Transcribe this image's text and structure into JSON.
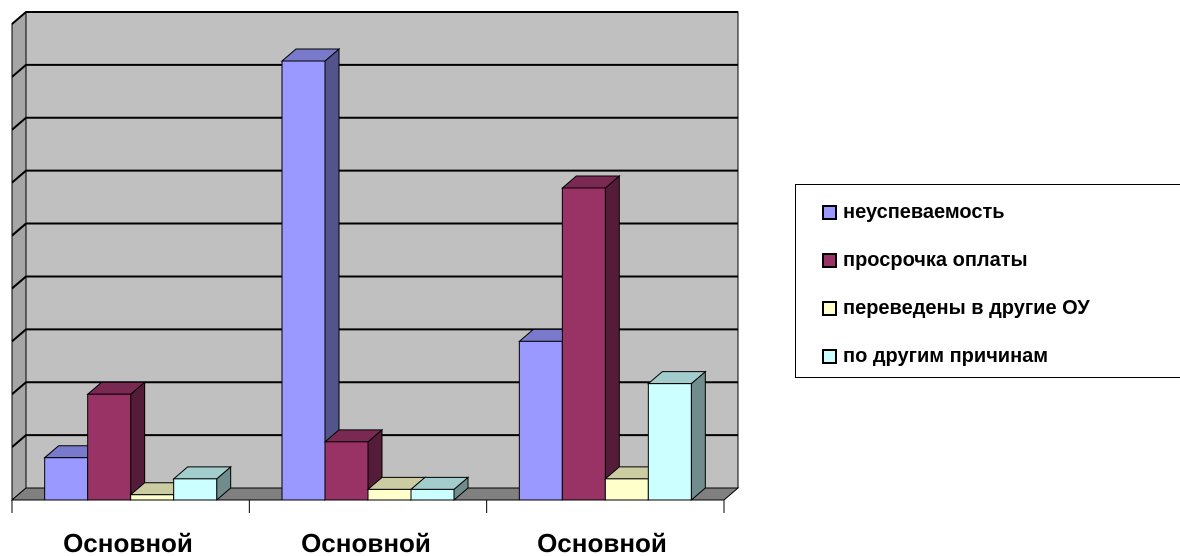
{
  "chart_data": {
    "type": "bar",
    "categories": [
      "Основной",
      "Основной",
      "Основной"
    ],
    "series": [
      {
        "name": "неуспеваемость",
        "values": [
          0.8,
          8.3,
          3.0
        ],
        "color": "#9999ff"
      },
      {
        "name": "просрочка оплаты",
        "values": [
          2.0,
          1.1,
          5.9
        ],
        "color": "#993366"
      },
      {
        "name": "переведены в другие ОУ",
        "values": [
          0.1,
          0.2,
          0.4
        ],
        "color": "#ffffcc"
      },
      {
        "name": "по другим причинам",
        "values": [
          0.4,
          0.2,
          2.2
        ],
        "color": "#ccffff"
      }
    ],
    "ylim": [
      0,
      9
    ],
    "grid": true,
    "legend": "right",
    "style": "3d-clustered-column"
  },
  "legend": {
    "items": [
      {
        "label": "неуспеваемость"
      },
      {
        "label": "просрочка оплаты"
      },
      {
        "label": "переведены в другие ОУ"
      },
      {
        "label": "по другим причинам"
      }
    ]
  }
}
